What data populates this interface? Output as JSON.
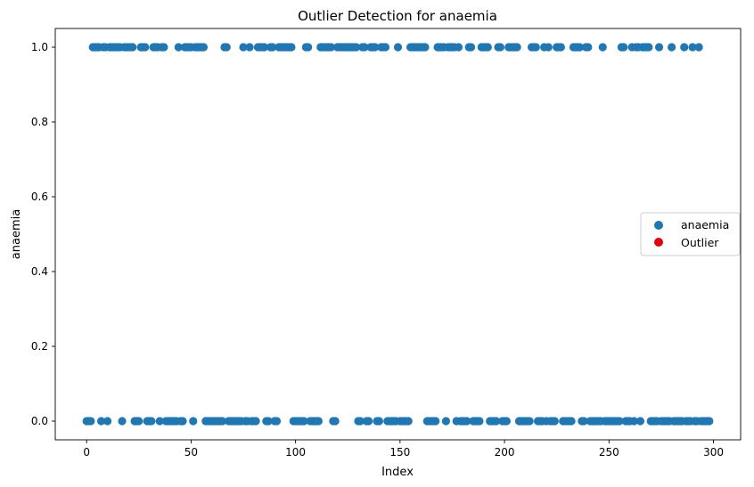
{
  "chart_data": {
    "type": "scatter",
    "title": "Outlier Detection for anaemia",
    "xlabel": "Index",
    "ylabel": "anaemia",
    "xlim": [
      -15,
      313
    ],
    "ylim": [
      -0.05,
      1.05
    ],
    "xticks": [
      0,
      50,
      100,
      150,
      200,
      250,
      300
    ],
    "yticks": [
      0.0,
      0.2,
      0.4,
      0.6,
      0.8,
      1.0
    ],
    "xtick_labels": [
      "0",
      "50",
      "100",
      "150",
      "200",
      "250",
      "300"
    ],
    "ytick_labels": [
      "0.0",
      "0.2",
      "0.4",
      "0.6",
      "0.8",
      "1.0"
    ],
    "grid": false,
    "legend": "center-right",
    "series": [
      {
        "name": "anaemia",
        "color": "#1f77b4",
        "x": [
          0,
          1,
          2,
          3,
          4,
          5,
          6,
          7,
          8,
          9,
          10,
          11,
          12,
          13,
          14,
          15,
          16,
          17,
          18,
          19,
          20,
          21,
          22,
          23,
          24,
          25,
          26,
          27,
          28,
          29,
          30,
          31,
          32,
          33,
          34,
          35,
          36,
          37,
          38,
          39,
          40,
          41,
          42,
          43,
          44,
          45,
          46,
          47,
          48,
          49,
          50,
          51,
          52,
          53,
          54,
          55,
          56,
          57,
          58,
          59,
          60,
          61,
          62,
          63,
          64,
          65,
          66,
          67,
          68,
          69,
          70,
          71,
          72,
          73,
          74,
          75,
          76,
          77,
          78,
          79,
          80,
          81,
          82,
          83,
          84,
          85,
          86,
          87,
          88,
          89,
          90,
          91,
          92,
          93,
          94,
          95,
          96,
          97,
          98,
          99,
          100,
          101,
          102,
          103,
          104,
          105,
          106,
          107,
          108,
          109,
          110,
          111,
          112,
          113,
          114,
          115,
          116,
          117,
          118,
          119,
          120,
          121,
          122,
          123,
          124,
          125,
          126,
          127,
          128,
          129,
          130,
          131,
          132,
          133,
          134,
          135,
          136,
          137,
          138,
          139,
          140,
          141,
          142,
          143,
          144,
          145,
          146,
          147,
          148,
          149,
          150,
          151,
          152,
          153,
          154,
          155,
          156,
          157,
          158,
          159,
          160,
          161,
          162,
          163,
          164,
          165,
          166,
          167,
          168,
          169,
          170,
          171,
          172,
          173,
          174,
          175,
          176,
          177,
          178,
          179,
          180,
          181,
          182,
          183,
          184,
          185,
          186,
          187,
          188,
          189,
          190,
          191,
          192,
          193,
          194,
          195,
          196,
          197,
          198,
          199,
          200,
          201,
          202,
          203,
          204,
          205,
          206,
          207,
          208,
          209,
          210,
          211,
          212,
          213,
          214,
          215,
          216,
          217,
          218,
          219,
          220,
          221,
          222,
          223,
          224,
          225,
          226,
          227,
          228,
          229,
          230,
          231,
          232,
          233,
          234,
          235,
          236,
          237,
          238,
          239,
          240,
          241,
          242,
          243,
          244,
          245,
          246,
          247,
          248,
          249,
          250,
          251,
          252,
          253,
          254,
          255,
          256,
          257,
          258,
          259,
          260,
          261,
          262,
          263,
          264,
          265,
          266,
          267,
          268,
          269,
          270,
          271,
          272,
          273,
          274,
          275,
          276,
          277,
          278,
          279,
          280,
          281,
          282,
          283,
          284,
          285,
          286,
          287,
          288,
          289,
          290,
          291,
          292,
          293,
          294,
          295,
          296,
          297,
          298
        ],
        "y": [
          0,
          0,
          0,
          1,
          1,
          1,
          1,
          0,
          1,
          1,
          0,
          1,
          1,
          1,
          1,
          1,
          1,
          0,
          1,
          1,
          1,
          1,
          1,
          0,
          0,
          0,
          1,
          1,
          1,
          0,
          0,
          0,
          1,
          1,
          1,
          0,
          1,
          1,
          0,
          0,
          0,
          0,
          0,
          0,
          1,
          0,
          0,
          1,
          1,
          1,
          1,
          0,
          1,
          1,
          1,
          1,
          1,
          0,
          0,
          0,
          0,
          0,
          0,
          0,
          0,
          0,
          1,
          1,
          0,
          0,
          0,
          0,
          0,
          0,
          0,
          1,
          0,
          0,
          1,
          0,
          0,
          0,
          1,
          1,
          1,
          1,
          0,
          0,
          1,
          1,
          0,
          0,
          1,
          1,
          1,
          1,
          1,
          1,
          1,
          0,
          0,
          0,
          0,
          0,
          0,
          1,
          1,
          0,
          0,
          0,
          0,
          0,
          1,
          1,
          1,
          1,
          1,
          1,
          0,
          0,
          1,
          1,
          1,
          1,
          1,
          1,
          1,
          1,
          1,
          1,
          0,
          0,
          1,
          1,
          0,
          0,
          1,
          1,
          1,
          0,
          0,
          1,
          1,
          1,
          0,
          0,
          0,
          0,
          0,
          1,
          0,
          0,
          0,
          0,
          0,
          1,
          1,
          1,
          1,
          1,
          1,
          1,
          1,
          0,
          0,
          0,
          0,
          0,
          1,
          1,
          1,
          1,
          0,
          1,
          1,
          1,
          1,
          0,
          1,
          0,
          0,
          0,
          0,
          1,
          1,
          0,
          0,
          0,
          0,
          1,
          1,
          1,
          1,
          0,
          0,
          0,
          0,
          1,
          1,
          0,
          0,
          0,
          1,
          1,
          1,
          1,
          1,
          0,
          0,
          0,
          0,
          0,
          0,
          1,
          1,
          1,
          0,
          0,
          0,
          1,
          0,
          1,
          0,
          0,
          0,
          1,
          1,
          1,
          0,
          0,
          0,
          0,
          0,
          1,
          1,
          1,
          1,
          0,
          0,
          1,
          1,
          0,
          0,
          0,
          0,
          0,
          0,
          1,
          0,
          0,
          0,
          0,
          0,
          0,
          0,
          0,
          1,
          1,
          0,
          0,
          0,
          1,
          0,
          1,
          1,
          0,
          1,
          1,
          1,
          1,
          0,
          0,
          0,
          0,
          1,
          0,
          0,
          0,
          0,
          0,
          1,
          0,
          0,
          0,
          0,
          0,
          1,
          0,
          0,
          0,
          1,
          0,
          0,
          1,
          0,
          0,
          0,
          0,
          0
        ]
      },
      {
        "name": "Outlier",
        "color": "#e6000b",
        "x": [],
        "y": []
      }
    ]
  }
}
